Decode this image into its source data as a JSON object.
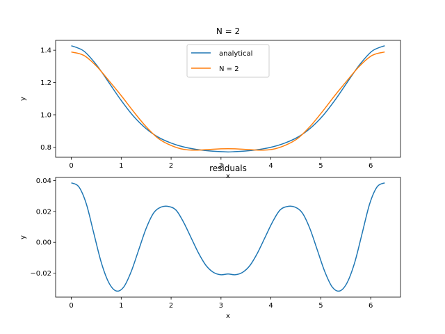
{
  "chart_data": [
    {
      "type": "line",
      "title": "N = 2",
      "xlabel": "x",
      "ylabel": "y",
      "xlim": [
        -0.314,
        6.597
      ],
      "ylim": [
        0.737,
        1.461
      ],
      "xticks": [
        0,
        1,
        2,
        3,
        4,
        5,
        6
      ],
      "yticks": [
        0.8,
        1.0,
        1.2,
        1.4
      ],
      "ytick_labels": [
        "0.8",
        "1.0",
        "1.2",
        "1.4"
      ],
      "legend": "upper center",
      "series": [
        {
          "name": "analytical",
          "color": "#1f77b4",
          "x": [
            0,
            0.25,
            0.5,
            0.75,
            1.0,
            1.25,
            1.5,
            1.75,
            2.0,
            2.25,
            2.5,
            2.75,
            3.0,
            3.14159,
            3.28,
            3.53,
            3.78,
            4.03,
            4.28,
            4.53,
            4.78,
            5.03,
            5.28,
            5.53,
            5.78,
            6.03,
            6.28
          ],
          "y": [
            1.428,
            1.395,
            1.311,
            1.201,
            1.089,
            0.99,
            0.914,
            0.86,
            0.825,
            0.801,
            0.786,
            0.777,
            0.772,
            0.77,
            0.772,
            0.777,
            0.786,
            0.801,
            0.825,
            0.86,
            0.914,
            0.99,
            1.089,
            1.201,
            1.311,
            1.395,
            1.428
          ]
        },
        {
          "name": "N = 2",
          "color": "#ff7f0e",
          "x": [
            0,
            0.25,
            0.5,
            0.75,
            1.0,
            1.25,
            1.5,
            1.75,
            2.0,
            2.25,
            2.5,
            2.75,
            3.0,
            3.14159,
            3.28,
            3.53,
            3.78,
            4.03,
            4.28,
            4.53,
            4.78,
            5.03,
            5.28,
            5.53,
            5.78,
            6.03,
            6.28
          ],
          "y": [
            1.389,
            1.368,
            1.303,
            1.213,
            1.119,
            1.019,
            0.926,
            0.852,
            0.81,
            0.786,
            0.781,
            0.785,
            0.789,
            0.79,
            0.789,
            0.785,
            0.781,
            0.786,
            0.81,
            0.852,
            0.926,
            1.019,
            1.119,
            1.213,
            1.303,
            1.368,
            1.389
          ]
        }
      ]
    },
    {
      "type": "line",
      "title": "residuals",
      "xlabel": "x",
      "ylabel": "y",
      "xlim": [
        -0.314,
        6.597
      ],
      "ylim": [
        -0.0355,
        0.042
      ],
      "xticks": [
        0,
        1,
        2,
        3,
        4,
        5,
        6
      ],
      "yticks": [
        -0.02,
        0.0,
        0.02,
        0.04
      ],
      "ytick_labels": [
        "−0.02",
        "0.00",
        "0.02",
        "0.04"
      ],
      "series": [
        {
          "color": "#1f77b4",
          "x": [
            0,
            0.15,
            0.3,
            0.45,
            0.6,
            0.75,
            0.9,
            1.05,
            1.2,
            1.35,
            1.5,
            1.65,
            1.8,
            1.95,
            2.1,
            2.25,
            2.4,
            2.55,
            2.7,
            2.85,
            3.0,
            3.14159,
            3.28,
            3.43,
            3.58,
            3.73,
            3.88,
            4.03,
            4.18,
            4.33,
            4.48,
            4.63,
            4.78,
            4.93,
            5.08,
            5.23,
            5.38,
            5.53,
            5.68,
            5.83,
            5.98,
            6.13,
            6.28
          ],
          "y": [
            0.0385,
            0.036,
            0.025,
            0.006,
            -0.013,
            -0.026,
            -0.0315,
            -0.029,
            -0.019,
            -0.005,
            0.009,
            0.019,
            0.0228,
            0.0232,
            0.0208,
            0.013,
            0.003,
            -0.007,
            -0.015,
            -0.0195,
            -0.021,
            -0.0205,
            -0.021,
            -0.0195,
            -0.015,
            -0.007,
            0.003,
            0.013,
            0.0208,
            0.0232,
            0.0228,
            0.019,
            0.009,
            -0.005,
            -0.019,
            -0.029,
            -0.0315,
            -0.026,
            -0.013,
            0.006,
            0.025,
            0.036,
            0.0385
          ]
        }
      ]
    }
  ]
}
